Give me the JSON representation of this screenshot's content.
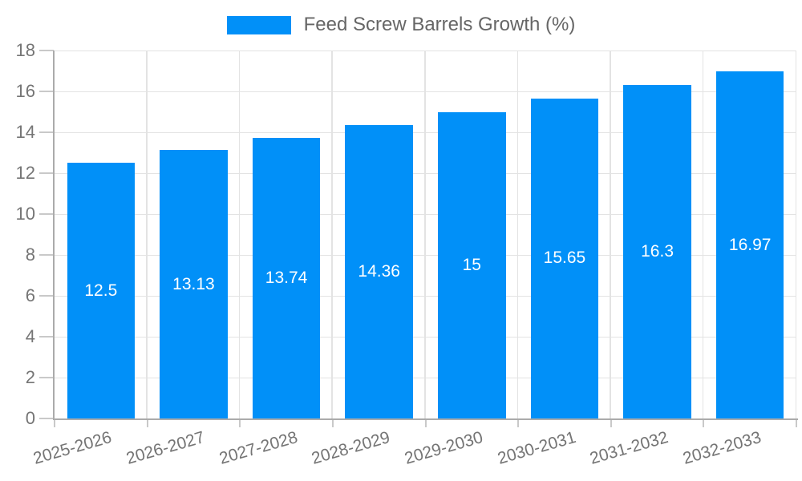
{
  "legend": {
    "label": "Feed Screw Barrels Growth (%)"
  },
  "chart_data": {
    "type": "bar",
    "title": "",
    "xlabel": "",
    "ylabel": "",
    "categories": [
      "2025-2026",
      "2026-2027",
      "2027-2028",
      "2028-2029",
      "2029-2030",
      "2030-2031",
      "2031-2032",
      "2032-2033"
    ],
    "series": [
      {
        "name": "Feed Screw Barrels Growth (%)",
        "values": [
          12.5,
          13.13,
          13.74,
          14.36,
          15,
          15.65,
          16.3,
          16.97
        ],
        "value_labels": [
          "12.5",
          "13.13",
          "13.74",
          "14.36",
          "15",
          "15.65",
          "16.3",
          "16.97"
        ],
        "color": "#0190F8"
      }
    ],
    "ylim": [
      0,
      18
    ],
    "yticks": [
      0,
      2,
      4,
      6,
      8,
      10,
      12,
      14,
      16,
      18
    ],
    "grid": "horizontal and vertical gridlines at ticks and category boundaries",
    "legend_position": "top-center",
    "data_labels": "white, centered inside bars",
    "x_label_rotation_deg": -16
  },
  "colors": {
    "bar": "#0190F8",
    "axis_line": "#ababab",
    "gridline": "#e3e3e3",
    "tick_mark": "#c9c9c9",
    "tick_text": "#757575",
    "legend_text": "#666666",
    "bar_label_text": "#ffffff",
    "background": "#ffffff"
  }
}
